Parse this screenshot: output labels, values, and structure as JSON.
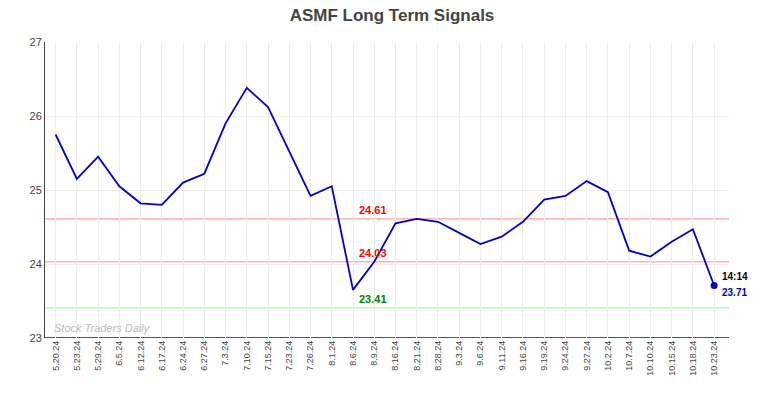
{
  "chart_data": {
    "type": "line",
    "title": "ASMF Long Term Signals",
    "categories": [
      "5.20.24",
      "5.23.24",
      "5.29.24",
      "6.5.24",
      "6.12.24",
      "6.17.24",
      "6.24.24",
      "6.27.24",
      "7.3.24",
      "7.10.24",
      "7.15.24",
      "7.23.24",
      "7.26.24",
      "8.1.24",
      "8.6.24",
      "8.9.24",
      "8.16.24",
      "8.21.24",
      "8.28.24",
      "9.3.24",
      "9.6.24",
      "9.11.24",
      "9.16.24",
      "9.19.24",
      "9.24.24",
      "9.27.24",
      "10.2.24",
      "10.7.24",
      "10.10.24",
      "10.15.24",
      "10.18.24",
      "10.23.24"
    ],
    "values": [
      25.75,
      25.15,
      25.45,
      25.05,
      24.82,
      24.8,
      25.1,
      25.22,
      25.9,
      26.38,
      26.12,
      25.52,
      24.92,
      25.05,
      23.65,
      24.03,
      24.55,
      24.61,
      24.57,
      24.42,
      24.27,
      24.37,
      24.57,
      24.87,
      24.92,
      25.12,
      24.97,
      24.18,
      24.1,
      24.3,
      24.47,
      23.71
    ],
    "color": "#0000cc",
    "hlines": [
      {
        "value": 24.61,
        "color": "#ffb3b3"
      },
      {
        "value": 24.03,
        "color": "#ffb3b3"
      },
      {
        "value": 23.41,
        "color": "#b3ffb3"
      },
      {
        "value": 23.0,
        "color": "#555555"
      }
    ],
    "annotations": [
      {
        "text": "24.61",
        "x": "8.6.24",
        "y": 24.61,
        "color": "red"
      },
      {
        "text": "24.03",
        "x": "8.6.24",
        "y": 24.03,
        "color": "red"
      },
      {
        "text": "23.41",
        "x": "8.6.24",
        "y": 23.41,
        "color": "green"
      },
      {
        "text": "14:14",
        "x": "10.23.24",
        "y": 23.71,
        "color": "black"
      },
      {
        "text": "23.71",
        "x": "10.23.24",
        "y": 23.71,
        "color": "#0000cc"
      },
      {
        "text": "Stock Traders Daily",
        "color": "#bbbbbb"
      }
    ],
    "ylim": [
      23,
      27
    ],
    "yticks": [
      23,
      24,
      25,
      26,
      27
    ],
    "grid": true
  }
}
